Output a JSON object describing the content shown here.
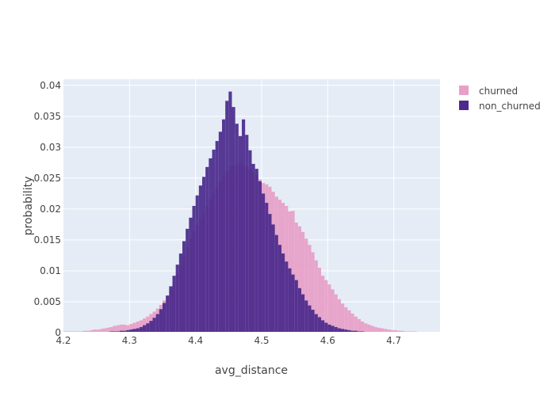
{
  "chart_data": {
    "type": "histogram",
    "title": "",
    "xlabel": "avg_distance",
    "ylabel": "probability",
    "xlim": [
      4.2,
      4.77
    ],
    "ylim": [
      0,
      0.041
    ],
    "bin_start": 4.2,
    "bin_width": 0.005,
    "grid": true,
    "legend_position": "top-right",
    "barmode": "overlay",
    "x_ticks": [
      4.2,
      4.3,
      4.4,
      4.5,
      4.6,
      4.7
    ],
    "x_tick_labels": [
      "4.2",
      "4.3",
      "4.4",
      "4.5",
      "4.6",
      "4.7"
    ],
    "y_ticks": [
      0,
      0.005,
      0.01,
      0.015,
      0.02,
      0.025,
      0.03,
      0.035,
      0.04
    ],
    "y_tick_labels": [
      "0",
      "0.005",
      "0.01",
      "0.015",
      "0.02",
      "0.025",
      "0.03",
      "0.035",
      "0.04"
    ],
    "series": [
      {
        "name": "churned",
        "color": "#e8a0c8",
        "values": [
          0.0002,
          0.0002,
          0.0002,
          0.0002,
          0.0002,
          0.0002,
          0.0003,
          0.0003,
          0.0004,
          0.0005,
          0.0005,
          0.0006,
          0.0007,
          0.0008,
          0.0009,
          0.0011,
          0.0012,
          0.0013,
          0.0013,
          0.0012,
          0.0014,
          0.0016,
          0.0018,
          0.002,
          0.0023,
          0.0026,
          0.003,
          0.0034,
          0.0039,
          0.0045,
          0.0052,
          0.006,
          0.007,
          0.0082,
          0.0095,
          0.0108,
          0.0122,
          0.0138,
          0.0152,
          0.0165,
          0.0175,
          0.0185,
          0.0193,
          0.0205,
          0.0215,
          0.0225,
          0.0235,
          0.0245,
          0.0255,
          0.0262,
          0.0268,
          0.027,
          0.0272,
          0.0275,
          0.0272,
          0.0268,
          0.0265,
          0.026,
          0.0255,
          0.0248,
          0.0242,
          0.024,
          0.0236,
          0.0228,
          0.022,
          0.0215,
          0.021,
          0.0205,
          0.0196,
          0.0197,
          0.0178,
          0.0172,
          0.0163,
          0.0152,
          0.0142,
          0.013,
          0.0117,
          0.0105,
          0.0092,
          0.0085,
          0.0078,
          0.007,
          0.0062,
          0.0054,
          0.0047,
          0.0041,
          0.0036,
          0.0031,
          0.0026,
          0.0022,
          0.0018,
          0.0015,
          0.0013,
          0.0011,
          0.0009,
          0.0008,
          0.0007,
          0.0006,
          0.0005,
          0.0004,
          0.0004,
          0.0003,
          0.0003,
          0.0002,
          0.0002,
          0.0002,
          0.0002,
          0.0001,
          0.0001,
          0.0001,
          0.0001,
          0.0001,
          0.0001,
          0.0001
        ]
      },
      {
        "name": "non_churned",
        "color": "#4a2a8c",
        "values": [
          5e-05,
          5e-05,
          5e-05,
          5e-05,
          5e-05,
          5e-05,
          0.0001,
          0.0001,
          0.0001,
          0.0001,
          0.0001,
          0.0001,
          0.0001,
          0.0001,
          0.0002,
          0.0002,
          0.0002,
          0.0003,
          0.0003,
          0.0004,
          0.0005,
          0.0006,
          0.0007,
          0.0009,
          0.0012,
          0.0015,
          0.0019,
          0.0024,
          0.003,
          0.0038,
          0.0048,
          0.006,
          0.0075,
          0.0092,
          0.011,
          0.0128,
          0.0148,
          0.0168,
          0.0186,
          0.0205,
          0.0222,
          0.0238,
          0.0252,
          0.0268,
          0.0282,
          0.0296,
          0.031,
          0.0325,
          0.0345,
          0.0375,
          0.039,
          0.0365,
          0.0338,
          0.0318,
          0.0345,
          0.032,
          0.0295,
          0.0273,
          0.0265,
          0.0245,
          0.0225,
          0.021,
          0.0192,
          0.0175,
          0.0158,
          0.0142,
          0.0128,
          0.0115,
          0.0104,
          0.0094,
          0.0085,
          0.0072,
          0.0062,
          0.0052,
          0.0044,
          0.0037,
          0.003,
          0.0025,
          0.002,
          0.0016,
          0.0013,
          0.0011,
          0.0009,
          0.0007,
          0.0006,
          0.0005,
          0.0004,
          0.0003,
          0.0003,
          0.0002,
          0.0002,
          0.0001,
          0.0001,
          0.0001,
          0.0001,
          0.0001,
          0.0001,
          5e-05,
          5e-05,
          5e-05,
          5e-05,
          5e-05,
          5e-05,
          5e-05,
          5e-05,
          5e-05,
          5e-05,
          5e-05,
          5e-05,
          5e-05,
          5e-05,
          5e-05,
          5e-05,
          5e-05,
          5e-05
        ]
      }
    ]
  }
}
